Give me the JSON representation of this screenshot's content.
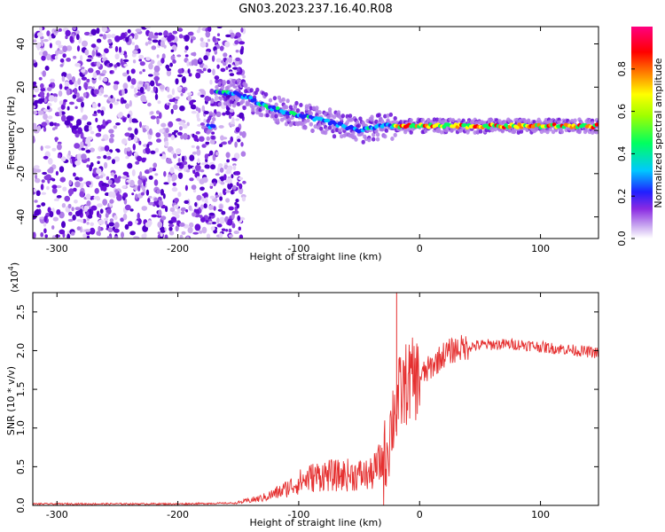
{
  "title": "GN03.2023.237.16.40.R08",
  "chart_data": [
    {
      "type": "heatmap",
      "xlabel": "Height of straight line (km)",
      "ylabel": "Frequency (Hz)",
      "xlim": [
        -320,
        148
      ],
      "ylim": [
        -50,
        48
      ],
      "xticks": [
        -300,
        -200,
        -100,
        0,
        100
      ],
      "yticks": [
        -40,
        -20,
        0,
        20,
        40
      ],
      "grid": false,
      "noise_region_x": [
        -320,
        -145
      ],
      "ridge": {
        "x": [
          -170,
          -150,
          -130,
          -110,
          -90,
          -70,
          -50,
          -30,
          -10,
          0,
          30,
          60,
          90,
          120,
          148
        ],
        "y": [
          18,
          17,
          12,
          8,
          6,
          3,
          0,
          2,
          2,
          2,
          2,
          2,
          2,
          2,
          2
        ]
      },
      "colorbar": {
        "label": "Normalized spectral amplitude",
        "range": [
          0.0,
          1.0
        ],
        "ticks": [
          "0.0",
          "0.2",
          "0.4",
          "0.6",
          "0.8"
        ],
        "colormap": "hsv_rainbow",
        "colors": [
          "#ffffff",
          "#8a2be2",
          "#0000ff",
          "#00ffff",
          "#00ff00",
          "#ffff00",
          "#ff8000",
          "#ff0000",
          "#ff0080"
        ]
      }
    },
    {
      "type": "line",
      "xlabel": "Height of straight line (km)",
      "ylabel": "SNR (10 * v/v)",
      "scale_label": "(x10",
      "scale_exp": "4",
      "scale_close": ")",
      "xlim": [
        -320,
        148
      ],
      "ylim": [
        0,
        2.75
      ],
      "xticks": [
        -300,
        -200,
        -100,
        0,
        100
      ],
      "yticks": [
        "0.0",
        "0.5",
        "1.0",
        "1.5",
        "2.0",
        "2.5"
      ],
      "grid": false,
      "series": [
        {
          "color": "#e53030",
          "x": [
            -320,
            -200,
            -150,
            -130,
            -115,
            -100,
            -90,
            -80,
            -70,
            -60,
            -50,
            -40,
            -30,
            -25,
            -20,
            -15,
            -10,
            0,
            10,
            20,
            30,
            40,
            50,
            60,
            70,
            80,
            90,
            100,
            110,
            120,
            130,
            148
          ],
          "y": [
            0.02,
            0.02,
            0.03,
            0.08,
            0.15,
            0.25,
            0.3,
            0.33,
            0.32,
            0.33,
            0.33,
            0.33,
            0.5,
            0.9,
            1.3,
            1.45,
            1.6,
            1.65,
            1.8,
            1.95,
            2.02,
            2.05,
            2.07,
            2.08,
            2.08,
            2.08,
            2.07,
            2.05,
            2.03,
            2.02,
            2.0,
            1.97
          ]
        }
      ]
    }
  ]
}
